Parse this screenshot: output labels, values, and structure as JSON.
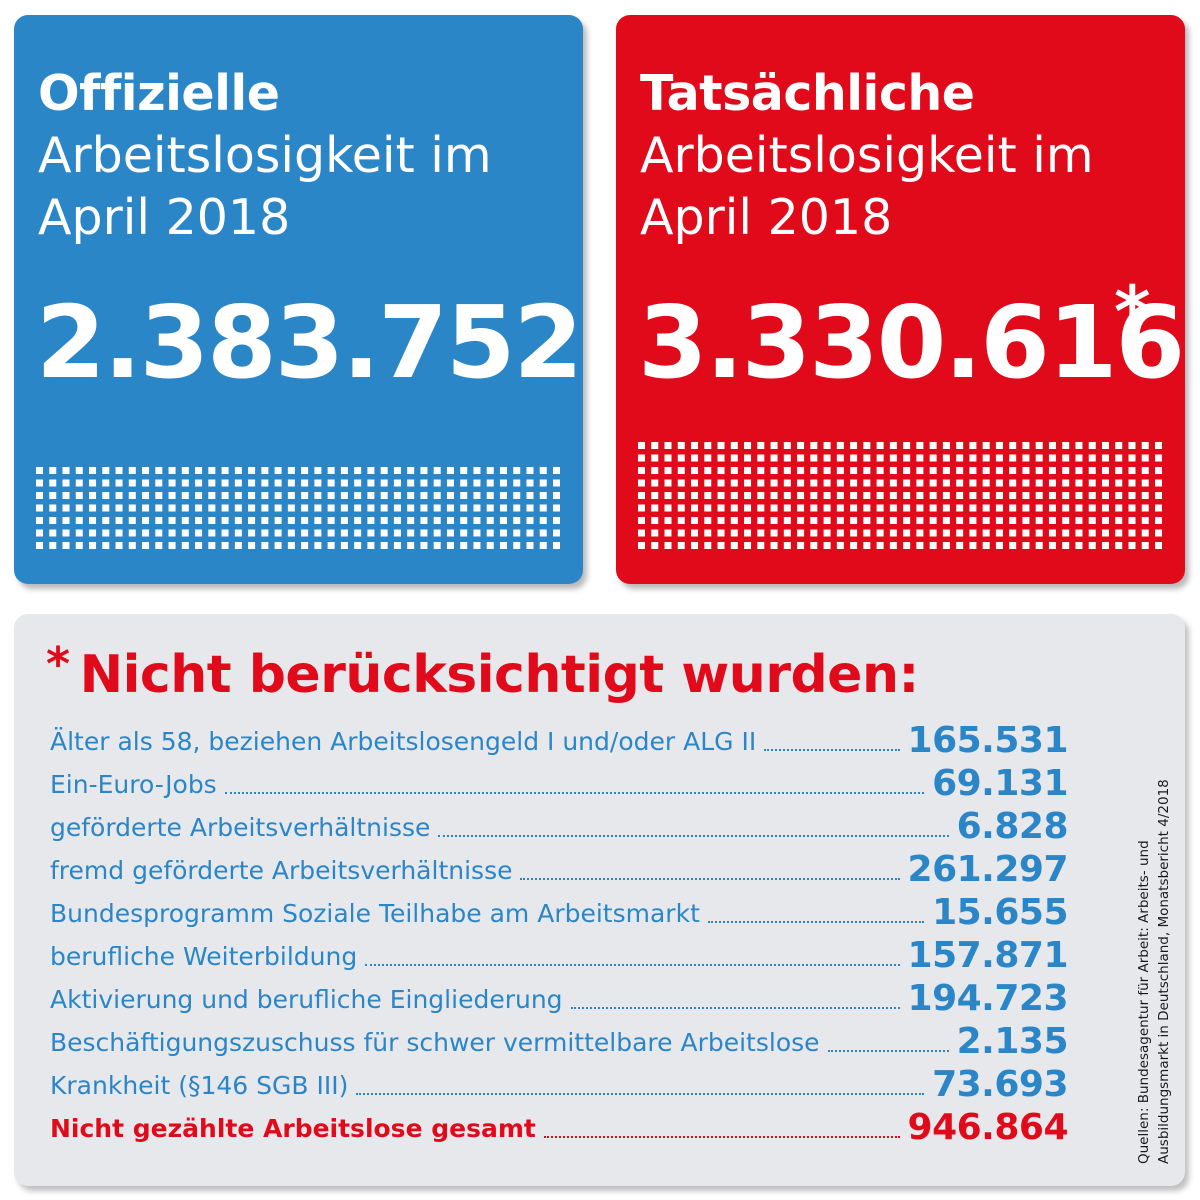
{
  "colors": {
    "blue": "#2b86c8",
    "red": "#e10a1a",
    "panel": "#e6e8ec"
  },
  "official": {
    "title_bold": "Offizielle",
    "title_line2": "Arbeitslosigkeit im",
    "title_line3": "April 2018",
    "value": "2.383.752"
  },
  "actual": {
    "title_bold": "Tatsächliche",
    "title_line2": "Arbeitslosigkeit im",
    "title_line3": "April 2018",
    "value": "3.330.616",
    "asterisk": "*"
  },
  "not_counted": {
    "asterisk": "*",
    "heading": "Nicht berücksichtigt wurden:",
    "items": [
      {
        "label": "Älter als 58, beziehen Arbeitslosengeld I und/oder ALG II",
        "value": "165.531"
      },
      {
        "label": "Ein-Euro-Jobs",
        "value": "69.131"
      },
      {
        "label": "geförderte Arbeitsverhältnisse",
        "value": "6.828"
      },
      {
        "label": "fremd geförderte Arbeitsverhältnisse",
        "value": "261.297"
      },
      {
        "label": "Bundesprogramm Soziale Teilhabe am Arbeitsmarkt",
        "value": "15.655"
      },
      {
        "label": "berufliche Weiterbildung",
        "value": "157.871"
      },
      {
        "label": "Aktivierung und berufliche Eingliederung",
        "value": "194.723"
      },
      {
        "label": "Beschäftigungszuschuss für schwer vermittelbare Arbeitslose",
        "value": "2.135"
      },
      {
        "label": "Krankheit (§146 SGB III)",
        "value": "73.693"
      }
    ],
    "total": {
      "label": "Nicht gezählte Arbeitslose gesamt",
      "value": "946.864"
    }
  },
  "source": {
    "line1": "Quellen: Bundesagentur für Arbeit: Arbeits- und",
    "line2": "Ausbildungsmarkt in Deutschland, Monatsbericht 4/2018"
  }
}
